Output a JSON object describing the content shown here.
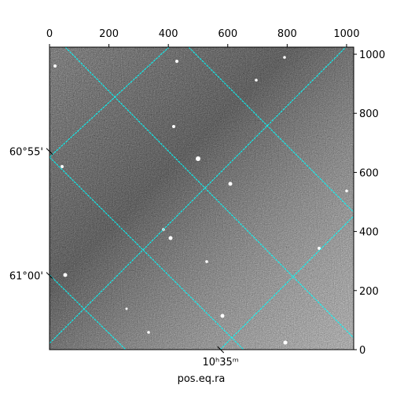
{
  "chart_data": {
    "type": "image",
    "xlabel": "pos.eq.ra",
    "xlim": [
      0,
      1024
    ],
    "ylim": [
      0,
      1024
    ],
    "xticks": [
      0,
      200,
      400,
      600,
      800,
      1000
    ],
    "yticks": [
      0,
      200,
      400,
      600,
      800,
      1000
    ],
    "world_yticks": [
      {
        "value": 671,
        "label": "60°55'"
      },
      {
        "value": 251,
        "label": "61°00'"
      }
    ],
    "world_xticks": [
      {
        "value": 576,
        "label": "10ʰ35ᵐ"
      }
    ],
    "grid_color": "#00ffff"
  }
}
